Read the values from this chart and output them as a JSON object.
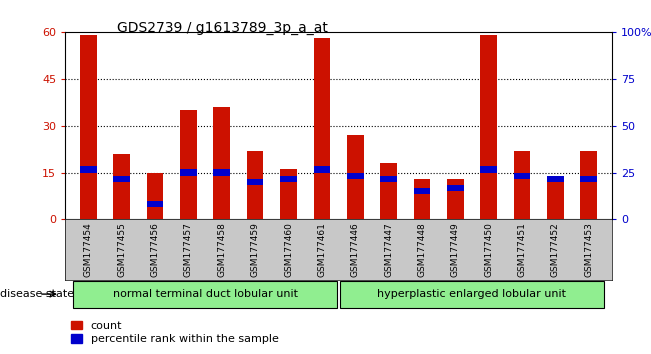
{
  "title": "GDS2739 / g1613789_3p_a_at",
  "samples": [
    "GSM177454",
    "GSM177455",
    "GSM177456",
    "GSM177457",
    "GSM177458",
    "GSM177459",
    "GSM177460",
    "GSM177461",
    "GSM177446",
    "GSM177447",
    "GSM177448",
    "GSM177449",
    "GSM177450",
    "GSM177451",
    "GSM177452",
    "GSM177453"
  ],
  "counts": [
    59,
    21,
    15,
    35,
    36,
    22,
    16,
    58,
    27,
    18,
    13,
    13,
    59,
    22,
    14,
    22
  ],
  "percentiles": [
    16,
    13,
    5,
    15,
    15,
    12,
    13,
    16,
    14,
    13,
    9,
    10,
    16,
    14,
    13,
    13
  ],
  "groups": [
    {
      "label": "normal terminal duct lobular unit",
      "start": 0,
      "end": 7
    },
    {
      "label": "hyperplastic enlarged lobular unit",
      "start": 8,
      "end": 15
    }
  ],
  "group_color": "#90ee90",
  "bar_color": "#cc1100",
  "percentile_color": "#0000cc",
  "bg_color": "#ffffff",
  "tick_bg": "#c8c8c8",
  "ylim": [
    0,
    60
  ],
  "y2lim": [
    0,
    100
  ],
  "yticks": [
    0,
    15,
    30,
    45,
    60
  ],
  "ytick_labels": [
    "0",
    "15",
    "30",
    "45",
    "60"
  ],
  "y2ticks": [
    0,
    25,
    50,
    75,
    100
  ],
  "y2tick_labels": [
    "0",
    "25",
    "50",
    "75",
    "100%"
  ],
  "legend_count_label": "count",
  "legend_pct_label": "percentile rank within the sample",
  "disease_state_label": "disease state",
  "bar_width": 0.5
}
